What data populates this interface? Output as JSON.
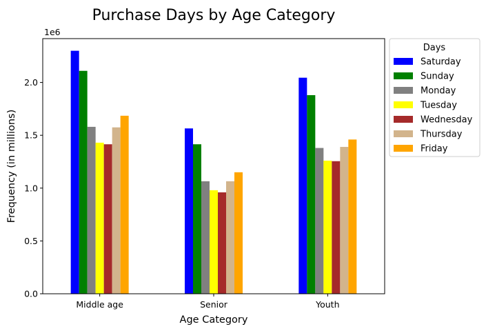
{
  "chart_data": {
    "type": "bar",
    "title": "Purchase Days by Age Category",
    "xlabel": "Age Category",
    "ylabel": "Frequency (in millions)",
    "y_offset_label": "1e6",
    "ylim": [
      0,
      2415000
    ],
    "yticks": [
      0,
      500000,
      1000000,
      1500000,
      2000000
    ],
    "ytick_labels": [
      "0.0",
      "0.5",
      "1.0",
      "1.5",
      "2.0"
    ],
    "grid": false,
    "legend": {
      "title": "Days",
      "placement": "outside-top-right"
    },
    "categories": [
      "Middle age",
      "Senior",
      "Youth"
    ],
    "series": [
      {
        "name": "Saturday",
        "color": "#0000ff",
        "values": [
          2300000,
          1565000,
          2045000
        ]
      },
      {
        "name": "Sunday",
        "color": "#008000",
        "values": [
          2110000,
          1415000,
          1880000
        ]
      },
      {
        "name": "Monday",
        "color": "#808080",
        "values": [
          1580000,
          1065000,
          1380000
        ]
      },
      {
        "name": "Tuesday",
        "color": "#ffff00",
        "values": [
          1430000,
          980000,
          1260000
        ]
      },
      {
        "name": "Wednesday",
        "color": "#a52a2a",
        "values": [
          1415000,
          960000,
          1255000
        ]
      },
      {
        "name": "Thursday",
        "color": "#d2b48c",
        "values": [
          1575000,
          1065000,
          1390000
        ]
      },
      {
        "name": "Friday",
        "color": "#ffa500",
        "values": [
          1685000,
          1150000,
          1460000
        ]
      }
    ]
  }
}
